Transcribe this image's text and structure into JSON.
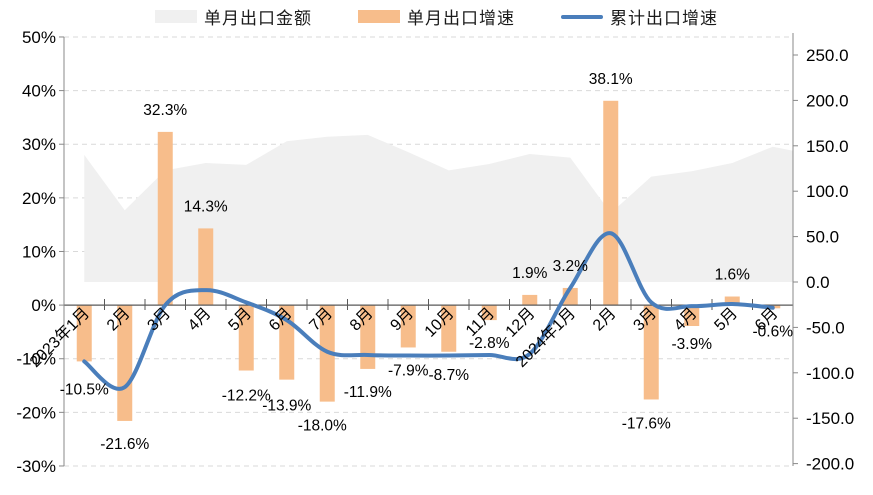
{
  "chart_data": {
    "type": "combo",
    "title": "",
    "legend_position": "top",
    "grid": "horizontal-dashed",
    "categories": [
      "2023年1月",
      "2月",
      "3月",
      "4月",
      "5月",
      "6月",
      "7月",
      "8月",
      "9月",
      "10月",
      "11月",
      "12月",
      "2024年1月",
      "2月",
      "3月",
      "4月",
      "5月",
      "6月"
    ],
    "series": [
      {
        "name": "单月出口金额",
        "chart_type": "area",
        "axis": "right",
        "color": "#f0f0f0",
        "values": [
          140,
          79,
          123,
          131,
          129,
          155,
          160,
          162,
          143,
          123,
          130,
          141,
          137,
          76,
          116,
          122,
          131,
          149
        ]
      },
      {
        "name": "单月出口增速",
        "chart_type": "bar",
        "axis": "left",
        "color": "#f7bd8b",
        "values": [
          -10.5,
          -21.6,
          32.3,
          14.3,
          -12.2,
          -13.9,
          -18.0,
          -11.9,
          -7.9,
          -8.7,
          -2.8,
          1.9,
          3.2,
          38.1,
          -17.6,
          -3.9,
          1.6,
          -0.6
        ],
        "data_labels": [
          "-10.5%",
          "-21.6%",
          "32.3%",
          "14.3%",
          "-12.2%",
          "-13.9%",
          "-18.0%",
          "-11.9%",
          "-7.9%",
          "-8.7%",
          "-2.8%",
          "1.9%",
          "3.2%",
          "38.1%",
          "-17.6%",
          "-3.9%",
          "1.6%",
          "-0.6%"
        ]
      },
      {
        "name": "累计出口增速",
        "chart_type": "line",
        "axis": "left",
        "color": "#4a7ebb",
        "values": [
          -10.5,
          -15.3,
          0.0,
          2.8,
          0.5,
          -2.8,
          -8.7,
          -9.3,
          -9.4,
          -9.4,
          -9.3,
          -9.1,
          3.2,
          13.4,
          0.5,
          -0.2,
          0.2,
          -0.5
        ]
      }
    ],
    "left_axis": {
      "min": -30,
      "max": 50,
      "step": 10,
      "tick_labels": [
        "50%",
        "40%",
        "30%",
        "20%",
        "10%",
        "0%",
        "-10%",
        "-20%",
        "-30%"
      ],
      "tick_values": [
        50,
        40,
        30,
        20,
        10,
        0,
        -10,
        -20,
        -30
      ]
    },
    "right_axis": {
      "min": -200,
      "max": 250,
      "step": 50,
      "tick_labels": [
        "250.0",
        "200.0",
        "150.0",
        "100.0",
        "50.0",
        "0.0",
        "-50.0",
        "-100.0",
        "-150.0",
        "-200.0"
      ],
      "tick_values": [
        250,
        200,
        150,
        100,
        50,
        0,
        -50,
        -100,
        -150,
        -200
      ]
    }
  }
}
